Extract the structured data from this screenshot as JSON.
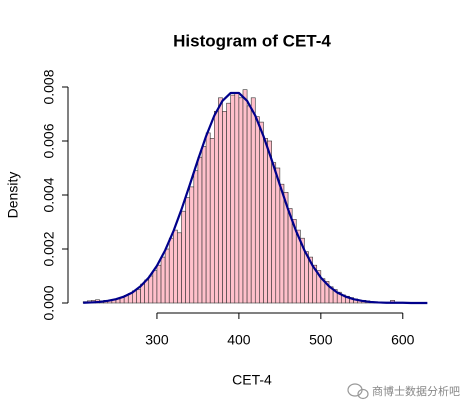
{
  "chart_data": {
    "type": "histogram",
    "title": "Histogram of CET-4",
    "x_label": "CET-4",
    "y_label": "Density",
    "watermark": "商博士数据分析吧",
    "bins": [
      210,
      215,
      220,
      225,
      230,
      235,
      240,
      245,
      250,
      255,
      260,
      265,
      270,
      275,
      280,
      285,
      290,
      295,
      300,
      305,
      310,
      315,
      320,
      325,
      330,
      335,
      340,
      345,
      350,
      355,
      360,
      365,
      370,
      375,
      380,
      385,
      390,
      395,
      400,
      405,
      410,
      415,
      420,
      425,
      430,
      435,
      440,
      445,
      450,
      455,
      460,
      465,
      470,
      475,
      480,
      485,
      490,
      495,
      500,
      505,
      510,
      515,
      520,
      525,
      530,
      535,
      540,
      545,
      550,
      555,
      560,
      565,
      570,
      575,
      580,
      585,
      590,
      595,
      600,
      605,
      610,
      615,
      620,
      625,
      630
    ],
    "values": [
      5e-05,
      8e-05,
      0.0001,
      0.00012,
      8e-05,
      0.0001,
      0.0001,
      0.00012,
      0.00015,
      0.0002,
      0.00028,
      0.00035,
      0.00045,
      0.0005,
      0.0007,
      0.00085,
      0.001,
      0.0012,
      0.0014,
      0.0017,
      0.002,
      0.0024,
      0.0027,
      0.0026,
      0.0034,
      0.0039,
      0.0043,
      0.0049,
      0.0054,
      0.0058,
      0.0063,
      0.0061,
      0.0071,
      0.0076,
      0.0071,
      0.0074,
      0.0077,
      0.0078,
      0.0076,
      0.0079,
      0.0073,
      0.0076,
      0.0069,
      0.0067,
      0.0061,
      0.006,
      0.0052,
      0.005,
      0.0044,
      0.0041,
      0.0035,
      0.0031,
      0.0027,
      0.0024,
      0.0019,
      0.0017,
      0.0014,
      0.0012,
      0.0009,
      0.0008,
      0.0006,
      0.0005,
      0.0004,
      0.0003,
      0.00025,
      0.0002,
      0.00015,
      0.0001,
      0.0001,
      8e-05,
      5e-05,
      4e-05,
      3e-05,
      2e-05,
      2e-05,
      0.0001,
      2e-05,
      1e-05,
      1e-05,
      0,
      0,
      0,
      0,
      0
    ],
    "color": "#ffc0cb",
    "edge_color": "#333333",
    "density": {
      "color": "#00008b",
      "x": [
        210,
        220,
        230,
        240,
        250,
        260,
        270,
        280,
        290,
        300,
        310,
        320,
        330,
        340,
        350,
        360,
        370,
        380,
        390,
        400,
        410,
        420,
        430,
        440,
        450,
        460,
        470,
        480,
        490,
        500,
        510,
        520,
        530,
        540,
        550,
        560,
        570,
        580,
        590,
        600,
        610,
        620,
        630
      ],
      "values": [
        1e-05,
        2e-05,
        4e-05,
        8e-05,
        0.00014,
        0.00024,
        0.00039,
        0.00062,
        0.00094,
        0.00138,
        0.00195,
        0.00265,
        0.00347,
        0.00437,
        0.0053,
        0.00618,
        0.00694,
        0.00749,
        0.00778,
        0.00778,
        0.00749,
        0.00694,
        0.00618,
        0.0053,
        0.00437,
        0.00347,
        0.00265,
        0.00195,
        0.00138,
        0.00094,
        0.00062,
        0.00039,
        0.00024,
        0.00014,
        8e-05,
        4e-05,
        2e-05,
        1e-05,
        1e-05,
        1e-05,
        0,
        0,
        0
      ]
    },
    "xlim": [
      200,
      632
    ],
    "ylim": [
      0,
      0.0081
    ],
    "xticks": [
      300,
      400,
      500,
      600
    ],
    "yticks": [
      {
        "value": 0,
        "label": "0.000"
      },
      {
        "value": 0.002,
        "label": "0.002"
      },
      {
        "value": 0.004,
        "label": "0.004"
      },
      {
        "value": 0.006,
        "label": "0.006"
      },
      {
        "value": 0.008,
        "label": "0.008"
      }
    ]
  }
}
